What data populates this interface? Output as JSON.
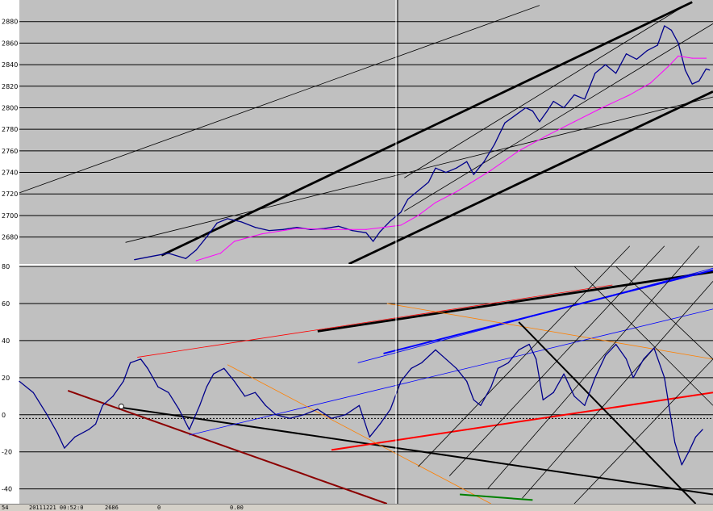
{
  "colors": {
    "plot_background": "#c0c0c0",
    "price_line": "#00008b",
    "moving_average": "#ff00ff",
    "separator": "#ffffff",
    "status_bar": "#d4d0c8"
  },
  "status_bar": {
    "fields": [
      "54",
      "20111221 00:52:0",
      "2686",
      "0",
      "0.00"
    ]
  },
  "chart_data": [
    {
      "type": "line",
      "yticks": [
        "2680",
        "2700",
        "2720",
        "2740",
        "2760",
        "2780",
        "2800",
        "2820",
        "2840",
        "2860",
        "2880"
      ],
      "ylim": [
        2655,
        2900
      ],
      "xlim": [
        0,
        1
      ],
      "grid": true,
      "series": [
        {
          "role": "price",
          "color": "#00008b",
          "points": [
            [
              0.166,
              2659
            ],
            [
              0.19,
              2662
            ],
            [
              0.215,
              2665
            ],
            [
              0.24,
              2660
            ],
            [
              0.255,
              2668
            ],
            [
              0.27,
              2680
            ],
            [
              0.285,
              2693
            ],
            [
              0.3,
              2697
            ],
            [
              0.32,
              2694
            ],
            [
              0.34,
              2689
            ],
            [
              0.36,
              2686
            ],
            [
              0.38,
              2687
            ],
            [
              0.4,
              2689
            ],
            [
              0.42,
              2687
            ],
            [
              0.44,
              2688
            ],
            [
              0.46,
              2690
            ],
            [
              0.48,
              2686
            ],
            [
              0.5,
              2684
            ],
            [
              0.51,
              2676
            ],
            [
              0.52,
              2685
            ],
            [
              0.535,
              2695
            ],
            [
              0.55,
              2703
            ],
            [
              0.56,
              2715
            ],
            [
              0.575,
              2723
            ],
            [
              0.59,
              2731
            ],
            [
              0.6,
              2744
            ],
            [
              0.615,
              2740
            ],
            [
              0.63,
              2744
            ],
            [
              0.645,
              2750
            ],
            [
              0.655,
              2738
            ],
            [
              0.67,
              2750
            ],
            [
              0.685,
              2766
            ],
            [
              0.7,
              2786
            ],
            [
              0.715,
              2793
            ],
            [
              0.73,
              2800
            ],
            [
              0.74,
              2797
            ],
            [
              0.75,
              2787
            ],
            [
              0.76,
              2796
            ],
            [
              0.77,
              2806
            ],
            [
              0.785,
              2800
            ],
            [
              0.8,
              2812
            ],
            [
              0.815,
              2808
            ],
            [
              0.83,
              2832
            ],
            [
              0.845,
              2840
            ],
            [
              0.86,
              2832
            ],
            [
              0.875,
              2850
            ],
            [
              0.89,
              2845
            ],
            [
              0.905,
              2853
            ],
            [
              0.92,
              2858
            ],
            [
              0.93,
              2876
            ],
            [
              0.94,
              2872
            ],
            [
              0.95,
              2860
            ],
            [
              0.96,
              2835
            ],
            [
              0.97,
              2822
            ],
            [
              0.98,
              2825
            ],
            [
              0.99,
              2836
            ],
            [
              0.995,
              2835
            ]
          ]
        },
        {
          "role": "moving-average",
          "color": "#ff00ff",
          "points": [
            [
              0.255,
              2658
            ],
            [
              0.29,
              2665
            ],
            [
              0.31,
              2676
            ],
            [
              0.35,
              2683
            ],
            [
              0.4,
              2688
            ],
            [
              0.45,
              2687
            ],
            [
              0.5,
              2687
            ],
            [
              0.55,
              2691
            ],
            [
              0.575,
              2700
            ],
            [
              0.6,
              2712
            ],
            [
              0.63,
              2722
            ],
            [
              0.65,
              2730
            ],
            [
              0.68,
              2742
            ],
            [
              0.72,
              2760
            ],
            [
              0.76,
              2774
            ],
            [
              0.8,
              2787
            ],
            [
              0.84,
              2800
            ],
            [
              0.88,
              2812
            ],
            [
              0.91,
              2823
            ],
            [
              0.935,
              2838
            ],
            [
              0.95,
              2848
            ],
            [
              0.97,
              2846
            ],
            [
              0.99,
              2846
            ]
          ]
        }
      ],
      "overlays": [
        {
          "color": "#000000",
          "weight": "heavy",
          "from": [
            0.205,
            2663
          ],
          "to": [
            0.97,
            2898
          ]
        },
        {
          "color": "#000000",
          "weight": "heavy",
          "from": [
            0.475,
            2655
          ],
          "to": [
            1.0,
            2815
          ]
        },
        {
          "color": "#000000",
          "weight": "thin",
          "from": [
            0.0,
            2721
          ],
          "to": [
            0.75,
            2895
          ]
        },
        {
          "color": "#000000",
          "weight": "thin",
          "from": [
            0.153,
            2675
          ],
          "to": [
            1.0,
            2810
          ]
        },
        {
          "color": "#000000",
          "weight": "thin",
          "from": [
            0.555,
            2735
          ],
          "to": [
            0.965,
            2897
          ]
        },
        {
          "color": "#000000",
          "weight": "thin",
          "from": [
            0.555,
            2704
          ],
          "to": [
            1.0,
            2878
          ]
        }
      ]
    },
    {
      "type": "line",
      "yticks": [
        "-40",
        "-20",
        "0",
        "20",
        "40",
        "60",
        "80"
      ],
      "ylim": [
        -48,
        80
      ],
      "xlim": [
        0,
        1
      ],
      "grid": true,
      "zero_line": -2,
      "series": [
        {
          "role": "oscillator",
          "color": "#00008b",
          "points": [
            [
              0.0,
              18
            ],
            [
              0.02,
              12
            ],
            [
              0.04,
              0
            ],
            [
              0.055,
              -10
            ],
            [
              0.065,
              -18
            ],
            [
              0.08,
              -12
            ],
            [
              0.1,
              -8
            ],
            [
              0.11,
              -5
            ],
            [
              0.12,
              5
            ],
            [
              0.135,
              10
            ],
            [
              0.15,
              18
            ],
            [
              0.16,
              28
            ],
            [
              0.175,
              30
            ],
            [
              0.185,
              25
            ],
            [
              0.2,
              15
            ],
            [
              0.215,
              12
            ],
            [
              0.23,
              3
            ],
            [
              0.245,
              -8
            ],
            [
              0.26,
              5
            ],
            [
              0.27,
              15
            ],
            [
              0.28,
              22
            ],
            [
              0.295,
              25
            ],
            [
              0.31,
              18
            ],
            [
              0.325,
              10
            ],
            [
              0.34,
              12
            ],
            [
              0.355,
              5
            ],
            [
              0.37,
              0
            ],
            [
              0.39,
              -2
            ],
            [
              0.41,
              0
            ],
            [
              0.43,
              3
            ],
            [
              0.45,
              -2
            ],
            [
              0.47,
              0
            ],
            [
              0.49,
              5
            ],
            [
              0.505,
              -12
            ],
            [
              0.52,
              -5
            ],
            [
              0.535,
              3
            ],
            [
              0.55,
              18
            ],
            [
              0.565,
              25
            ],
            [
              0.58,
              28
            ],
            [
              0.6,
              35
            ],
            [
              0.615,
              30
            ],
            [
              0.63,
              25
            ],
            [
              0.645,
              18
            ],
            [
              0.655,
              8
            ],
            [
              0.665,
              5
            ],
            [
              0.68,
              15
            ],
            [
              0.69,
              25
            ],
            [
              0.705,
              28
            ],
            [
              0.72,
              35
            ],
            [
              0.735,
              38
            ],
            [
              0.745,
              30
            ],
            [
              0.755,
              8
            ],
            [
              0.77,
              12
            ],
            [
              0.785,
              22
            ],
            [
              0.8,
              10
            ],
            [
              0.815,
              5
            ],
            [
              0.83,
              20
            ],
            [
              0.845,
              32
            ],
            [
              0.86,
              38
            ],
            [
              0.875,
              30
            ],
            [
              0.885,
              20
            ],
            [
              0.9,
              30
            ],
            [
              0.915,
              36
            ],
            [
              0.93,
              20
            ],
            [
              0.945,
              -15
            ],
            [
              0.955,
              -27
            ],
            [
              0.965,
              -20
            ],
            [
              0.975,
              -12
            ],
            [
              0.985,
              -8
            ]
          ]
        }
      ],
      "overlays": [
        {
          "color": "#8b0000",
          "weight": "medium",
          "from": [
            0.07,
            13
          ],
          "to": [
            0.53,
            -48
          ]
        },
        {
          "color": "#000000",
          "weight": "medium",
          "from": [
            0.145,
            4
          ],
          "to": [
            1.0,
            -43
          ]
        },
        {
          "color": "#000000",
          "weight": "heavy",
          "from": [
            0.43,
            45
          ],
          "to": [
            1.0,
            77
          ]
        },
        {
          "color": "#ff0000",
          "weight": "medium",
          "from": [
            0.45,
            -19
          ],
          "to": [
            1.0,
            12
          ]
        },
        {
          "color": "#ff0000",
          "weight": "thin",
          "from": [
            0.17,
            31
          ],
          "to": [
            0.855,
            70
          ]
        },
        {
          "color": "#0000ff",
          "weight": "thin",
          "from": [
            0.245,
            -11
          ],
          "to": [
            1.0,
            57
          ]
        },
        {
          "color": "#0000ff",
          "weight": "medium",
          "from": [
            0.525,
            33
          ],
          "to": [
            1.0,
            78
          ]
        },
        {
          "color": "#0000ff",
          "weight": "thin",
          "from": [
            0.488,
            28
          ],
          "to": [
            1.0,
            79
          ]
        },
        {
          "color": "#ff8000",
          "weight": "thin",
          "from": [
            0.3,
            27
          ],
          "to": [
            0.68,
            -48
          ]
        },
        {
          "color": "#ff8000",
          "weight": "thin",
          "from": [
            0.53,
            60
          ],
          "to": [
            1.0,
            30
          ]
        },
        {
          "color": "#000000",
          "weight": "medium",
          "from": [
            0.72,
            50
          ],
          "to": [
            0.975,
            -48
          ]
        },
        {
          "color": "#008000",
          "weight": "medium",
          "from": [
            0.635,
            -43
          ],
          "to": [
            0.74,
            -46
          ]
        },
        {
          "color": "#000000",
          "weight": "thin",
          "from": [
            0.575,
            -28
          ],
          "to": [
            0.88,
            91
          ]
        },
        {
          "color": "#000000",
          "weight": "thin",
          "from": [
            0.62,
            -33
          ],
          "to": [
            0.93,
            91
          ]
        },
        {
          "color": "#000000",
          "weight": "thin",
          "from": [
            0.675,
            -40
          ],
          "to": [
            0.98,
            91
          ]
        },
        {
          "color": "#000000",
          "weight": "thin",
          "from": [
            0.725,
            -45
          ],
          "to": [
            1.0,
            72
          ]
        },
        {
          "color": "#000000",
          "weight": "thin",
          "from": [
            0.8,
            -48
          ],
          "to": [
            1.0,
            30
          ]
        },
        {
          "color": "#000000",
          "weight": "thin",
          "from": [
            0.8,
            80
          ],
          "to": [
            1.0,
            5
          ]
        },
        {
          "color": "#000000",
          "weight": "thin",
          "from": [
            0.86,
            80
          ],
          "to": [
            1.0,
            30
          ]
        }
      ],
      "markers": [
        {
          "x": 0.147,
          "y": 4.5,
          "shape": "circle",
          "color": "#ffffff"
        }
      ]
    }
  ]
}
